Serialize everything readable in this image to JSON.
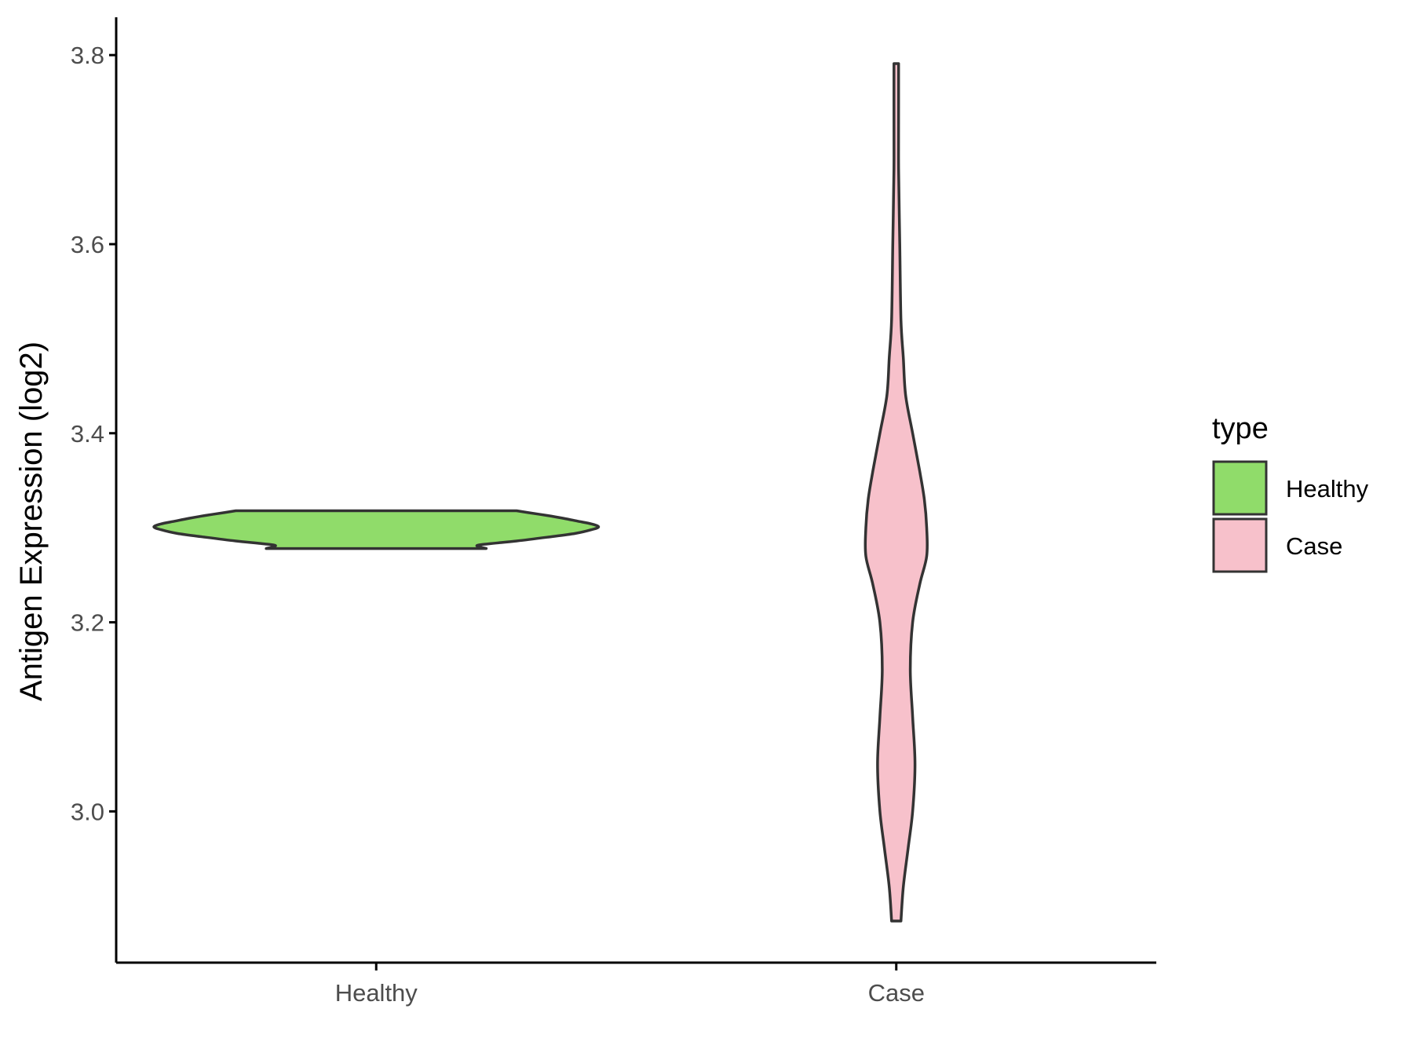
{
  "chart_data": {
    "type": "violin",
    "title": "",
    "xlabel": "",
    "ylabel": "Antigen Expression (log2)",
    "ylim": [
      2.84,
      3.84
    ],
    "yticks": [
      "3.0",
      "3.2",
      "3.4",
      "3.6",
      "3.8"
    ],
    "categories": [
      "Healthy",
      "Case"
    ],
    "grid": false,
    "legend": {
      "title": "type",
      "placement": "right",
      "entries": [
        {
          "label": "Healthy",
          "color": "#90dc6a"
        },
        {
          "label": "Case",
          "color": "#f7c1cb"
        }
      ]
    },
    "series": [
      {
        "category": "Healthy",
        "color": "#90dc6a",
        "min": 3.278,
        "max": 3.318,
        "density": [
          [
            3.278,
            0.47
          ],
          [
            3.281,
            0.43
          ],
          [
            3.283,
            0.48
          ],
          [
            3.286,
            0.6
          ],
          [
            3.29,
            0.73
          ],
          [
            3.294,
            0.85
          ],
          [
            3.298,
            0.92
          ],
          [
            3.301,
            0.95
          ],
          [
            3.304,
            0.92
          ],
          [
            3.307,
            0.86
          ],
          [
            3.31,
            0.8
          ],
          [
            3.313,
            0.73
          ],
          [
            3.316,
            0.65
          ],
          [
            3.318,
            0.6
          ]
        ]
      },
      {
        "category": "Case",
        "color": "#f7c1cb",
        "min": 2.884,
        "max": 3.791,
        "density": [
          [
            2.884,
            0.02
          ],
          [
            2.92,
            0.03
          ],
          [
            2.96,
            0.05
          ],
          [
            3.0,
            0.07
          ],
          [
            3.05,
            0.08
          ],
          [
            3.1,
            0.07
          ],
          [
            3.15,
            0.06
          ],
          [
            3.2,
            0.07
          ],
          [
            3.24,
            0.1
          ],
          [
            3.27,
            0.13
          ],
          [
            3.3,
            0.13
          ],
          [
            3.33,
            0.12
          ],
          [
            3.36,
            0.1
          ],
          [
            3.4,
            0.07
          ],
          [
            3.44,
            0.04
          ],
          [
            3.48,
            0.03
          ],
          [
            3.52,
            0.02
          ],
          [
            3.6,
            0.015
          ],
          [
            3.68,
            0.01
          ],
          [
            3.75,
            0.01
          ],
          [
            3.791,
            0.01
          ]
        ]
      }
    ]
  }
}
